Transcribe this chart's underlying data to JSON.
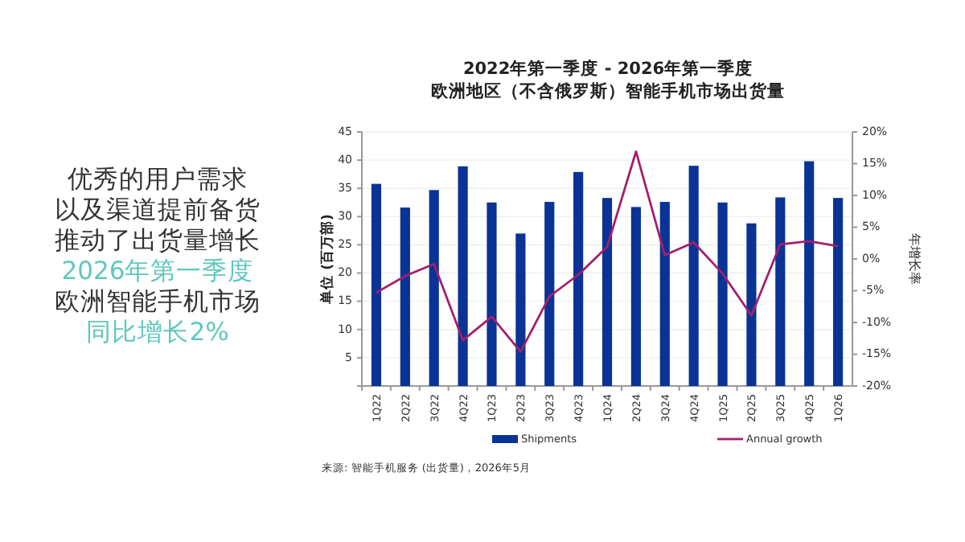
{
  "chart_data": [
    {
      "type": "other",
      "annotations": [
        "优秀的用户需求",
        "以及渠道提前备货",
        "推动了出货量增长",
        "2026年第一季度",
        "欧洲智能手机市场",
        "同比增长2%"
      ]
    },
    {
      "type": "bar",
      "title": "2022年第一季度 - 2026年第一季度",
      "subtitle": "欧洲地区（不含俄罗斯）智能手机市场出货量",
      "ylabel": "单位 (百万部)",
      "y2label": "年增长率",
      "categories": [
        "1Q22",
        "2Q22",
        "3Q22",
        "4Q22",
        "1Q23",
        "2Q23",
        "3Q23",
        "4Q23",
        "1Q24",
        "2Q24",
        "3Q24",
        "4Q24",
        "1Q25",
        "2Q25",
        "3Q25",
        "4Q25",
        "1Q26"
      ],
      "series": [
        {
          "name": "Shipments",
          "type": "bar",
          "color": "#0a3396",
          "values": [
            35.8,
            31.6,
            34.7,
            38.9,
            32.5,
            27.0,
            32.6,
            37.9,
            33.3,
            31.7,
            32.6,
            39.0,
            32.5,
            28.8,
            33.4,
            39.8,
            33.3
          ]
        },
        {
          "name": "Annual growth",
          "type": "line",
          "axis": "y2",
          "color": "#a3206a",
          "values": [
            -5.3,
            -2.7,
            -0.8,
            -12.8,
            -9.1,
            -14.6,
            -5.9,
            -2.5,
            1.9,
            16.9,
            0.6,
            2.6,
            -2.3,
            -8.9,
            2.3,
            2.8,
            2.0
          ]
        }
      ],
      "ylim": [
        0,
        45
      ],
      "yticks": [
        {
          "value": 0,
          "label": null
        },
        5,
        10,
        15,
        20,
        25,
        30,
        35,
        40,
        45
      ],
      "y2lim": [
        -20,
        20
      ],
      "y2ticks": [
        {
          "value": -20,
          "label": "-20%"
        },
        {
          "value": -15,
          "label": "-15%"
        },
        {
          "value": -10,
          "label": "-10%"
        },
        {
          "value": -5,
          "label": "-5%"
        },
        {
          "value": 0,
          "label": "0%"
        },
        {
          "value": 5,
          "label": "5%"
        },
        {
          "value": 10,
          "label": "10%"
        },
        {
          "value": 15,
          "label": "15%"
        },
        {
          "value": 20,
          "label": "20%"
        }
      ],
      "grid": "y",
      "legend": "bottom",
      "annotations": [
        "来源: 智能手机服务 (出货量)，2026年5月"
      ]
    }
  ]
}
